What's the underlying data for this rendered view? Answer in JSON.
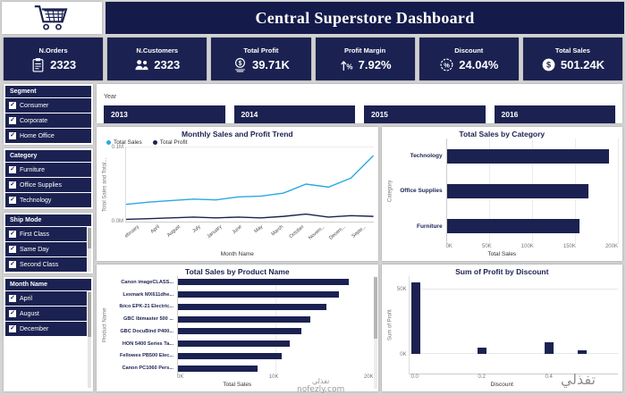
{
  "header": {
    "title": "Central Superstore Dashboard"
  },
  "kpis": [
    {
      "label": "N.Orders",
      "value": "2323"
    },
    {
      "label": "N.Customers",
      "value": "2323"
    },
    {
      "label": "Total Profit",
      "value": "39.71K"
    },
    {
      "label": "Profit Margin",
      "value": "7.92%"
    },
    {
      "label": "Discount",
      "value": "24.04%"
    },
    {
      "label": "Total Sales",
      "value": "501.24K"
    }
  ],
  "slicers": {
    "segment": {
      "title": "Segment",
      "items": [
        "Consumer",
        "Corporate",
        "Home Office"
      ]
    },
    "category": {
      "title": "Category",
      "items": [
        "Furniture",
        "Office Supplies",
        "Technology"
      ]
    },
    "ship_mode": {
      "title": "Ship Mode",
      "items": [
        "First Class",
        "Same Day",
        "Second Class"
      ]
    },
    "month_name": {
      "title": "Month Name",
      "items": [
        "April",
        "August",
        "December"
      ]
    }
  },
  "year": {
    "label": "Year",
    "options": [
      "2013",
      "2014",
      "2015",
      "2016"
    ]
  },
  "chart_data": [
    {
      "id": "trend",
      "type": "line",
      "title": "Monthly Sales and Profit Trend",
      "x": [
        "February",
        "April",
        "August",
        "July",
        "January",
        "June",
        "May",
        "March",
        "October",
        "Novem...",
        "Decem...",
        "Septe..."
      ],
      "series": [
        {
          "name": "Total Sales",
          "color": "#2ba8e2",
          "values": [
            0.023,
            0.026,
            0.028,
            0.03,
            0.029,
            0.033,
            0.034,
            0.038,
            0.05,
            0.046,
            0.058,
            0.088
          ]
        },
        {
          "name": "Total Profit",
          "color": "#1b2251",
          "values": [
            0.003,
            0.004,
            0.005,
            0.006,
            0.005,
            0.006,
            0.005,
            0.007,
            0.01,
            0.006,
            0.008,
            0.007
          ]
        }
      ],
      "xlabel": "Month Name",
      "ylabel": "Total Sales and Total...",
      "y_ticks": [
        "0.1M",
        "0.0M"
      ],
      "ylim": [
        0,
        0.1
      ],
      "legend_position": "top-left",
      "grid": true
    },
    {
      "id": "category",
      "type": "bar",
      "title": "Total Sales by Category",
      "categories": [
        "Technology",
        "Office Supplies",
        "Furniture"
      ],
      "values": [
        190,
        165,
        155
      ],
      "unit": "K",
      "xlabel": "Total Sales",
      "ylabel": "Category",
      "x_ticks": [
        "0K",
        "50K",
        "100K",
        "150K",
        "200K"
      ],
      "xlim": [
        0,
        200
      ],
      "grid": true
    },
    {
      "id": "product",
      "type": "bar",
      "title": "Total Sales by Product Name",
      "categories": [
        "Canon imageCLASS...",
        "Lexmark MX611dhe...",
        "Ibico EPK-21 Electric...",
        "GBC Ibimaster 500 ...",
        "GBC DocuBind P400...",
        "HON 5400 Series Ta...",
        "Fellowes PB500 Elec...",
        "Canon PC1060 Pers..."
      ],
      "values": [
        17.5,
        16.5,
        15.2,
        13.5,
        12.6,
        11.4,
        10.6,
        8.1
      ],
      "unit": "K",
      "xlabel": "Total Sales",
      "ylabel": "Product Name",
      "x_ticks": [
        "0K",
        "10K",
        "20K"
      ],
      "xlim": [
        0,
        20
      ],
      "grid": true
    },
    {
      "id": "discount",
      "type": "column",
      "title": "Sum of Profit by Discount",
      "x": [
        0.0,
        0.2,
        0.4,
        0.5
      ],
      "values": [
        55,
        5,
        9,
        3
      ],
      "unit": "K",
      "xlabel": "Discount",
      "ylabel": "Sum of Profit",
      "x_ticks": [
        "0.0",
        "0.2",
        "0.4"
      ],
      "y_ticks": [
        "50K",
        "0K"
      ],
      "ylim": [
        -15,
        60
      ],
      "xlim": [
        0,
        0.55
      ],
      "grid": true
    }
  ],
  "watermark": {
    "arabic": "تفذلي",
    "site": "nofezly.com"
  }
}
